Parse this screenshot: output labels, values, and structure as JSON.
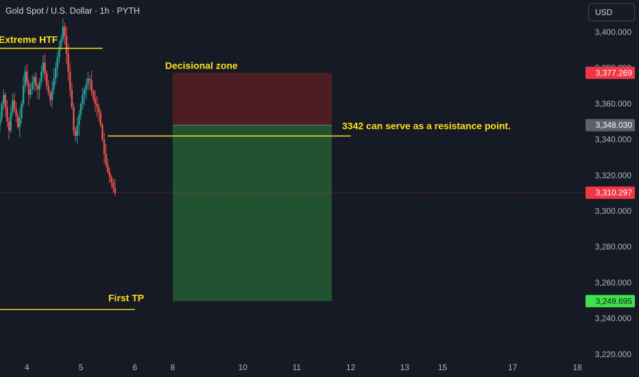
{
  "header": {
    "symbol_title": "Gold Spot / U.S. Dollar · 1h · PYTH",
    "currency_label": "USD"
  },
  "colors": {
    "background": "#161a25",
    "up": "#26a69a",
    "down": "#ef5350",
    "annotation": "#ffe01b",
    "stop_zone": "#4c1d22",
    "target_zone": "#215330",
    "price_badge_red": "#f23645",
    "price_badge_gray": "#5d606b",
    "price_badge_green": "#3fe24a"
  },
  "chart_data": {
    "type": "candlestick",
    "y_axis": {
      "ticks": [
        "3,400.000",
        "3,380.000",
        "3,360.000",
        "3,340.000",
        "3,320.000",
        "3,300.000",
        "3,280.000",
        "3,260.000",
        "3,240.000",
        "3,220.000"
      ],
      "tick_values": [
        3400,
        3380,
        3360,
        3340,
        3320,
        3300,
        3280,
        3260,
        3240,
        3220
      ],
      "range": [
        3218,
        3418
      ]
    },
    "x_axis": {
      "ticks": [
        "4",
        "5",
        "6",
        "8",
        "10",
        "11",
        "12",
        "13",
        "15",
        "17",
        "18"
      ],
      "tick_values": [
        4,
        5,
        6,
        6.7,
        8,
        9,
        10,
        11,
        11.7,
        13,
        14.2
      ],
      "range": [
        3.5,
        14.3
      ]
    },
    "candles_start": 3.5,
    "candles_step": 0.0333,
    "close_series": [
      3352,
      3360,
      3365,
      3358,
      3350,
      3345,
      3355,
      3362,
      3357,
      3353,
      3347,
      3352,
      3360,
      3370,
      3378,
      3372,
      3365,
      3368,
      3372,
      3375,
      3370,
      3368,
      3372,
      3378,
      3383,
      3377,
      3370,
      3366,
      3362,
      3368,
      3374,
      3380,
      3386,
      3392,
      3396,
      3403,
      3398,
      3388,
      3378,
      3368,
      3358,
      3345,
      3342,
      3348,
      3354,
      3360,
      3365,
      3368,
      3371,
      3374,
      3373,
      3367,
      3363,
      3360,
      3358,
      3355,
      3348,
      3340,
      3332,
      3326,
      3322,
      3319,
      3316,
      3313,
      3310
    ],
    "annotations": {
      "extreme_htf": {
        "label": "Extreme HTF",
        "price": 3391,
        "x_range": [
          3.5,
          5.4
        ]
      },
      "resistance": {
        "label": "3342 can serve as a resistance point.",
        "price": 3342,
        "x_range": [
          5.5,
          10.0
        ]
      },
      "first_tp": {
        "label": "First TP",
        "price": 3245,
        "x_range": [
          3.5,
          6.0
        ]
      },
      "decisional_zone": {
        "label": "Decisional zone"
      }
    },
    "position": {
      "x_range": [
        6.7,
        9.65
      ],
      "stop": 3377.269,
      "entry": 3348.03,
      "target": 3249.695,
      "last": 3310.297
    },
    "price_badges": [
      "3,377.269",
      "3,348.030",
      "3,310.297",
      "3,249.695"
    ]
  }
}
